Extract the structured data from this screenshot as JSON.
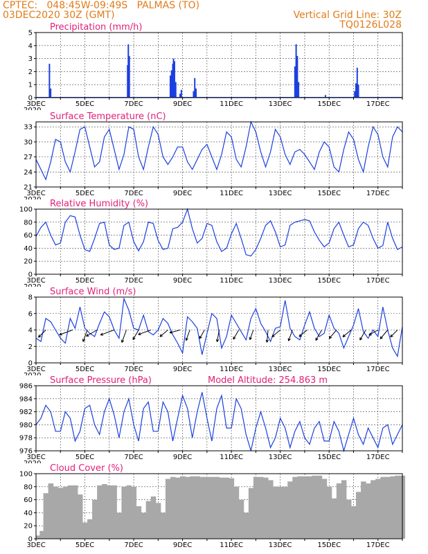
{
  "header": {
    "line1_left": "CPTEC:   048:45W-09:49S   PALMAS (TO)",
    "line2_left": "03DEC2020 30Z (GMT)",
    "line1_right": "Vertical Grid Line: 30Z",
    "line2_right": "TQ0126L028"
  },
  "colors": {
    "header": "#e07c1a",
    "title": "#e0207a",
    "line": "#1a3fe0",
    "bar": "#1a3fe0",
    "cloud": "#a8a8a8"
  },
  "x_axis": {
    "tick_labels": [
      "3DEC",
      "5DEC",
      "7DEC",
      "9DEC",
      "11DEC",
      "13DEC",
      "15DEC",
      "17DEC"
    ],
    "start_day": 3,
    "end_day": 18,
    "truncated_label": "2020"
  },
  "chart_data": [
    {
      "type": "bar",
      "title": "Precipitation (mm/h)",
      "ylim": [
        0,
        5
      ],
      "yticks": [
        0,
        1,
        2,
        3,
        4,
        5
      ],
      "x_unit": "day of December 2020",
      "points": [
        [
          3.55,
          2.6
        ],
        [
          3.6,
          0.7
        ],
        [
          6.75,
          2.5
        ],
        [
          6.78,
          4.1
        ],
        [
          6.82,
          3.2
        ],
        [
          8.5,
          1.7
        ],
        [
          8.55,
          2.1
        ],
        [
          8.6,
          2.6
        ],
        [
          8.63,
          3.0
        ],
        [
          8.67,
          2.8
        ],
        [
          8.72,
          1.2
        ],
        [
          8.9,
          0.3
        ],
        [
          8.95,
          0.6
        ],
        [
          9.45,
          0.5
        ],
        [
          9.5,
          1.5
        ],
        [
          9.55,
          0.7
        ],
        [
          13.6,
          2.4
        ],
        [
          13.65,
          4.1
        ],
        [
          13.7,
          3.2
        ],
        [
          13.75,
          1.2
        ],
        [
          14.85,
          0.2
        ],
        [
          16.05,
          0.5
        ],
        [
          16.1,
          1.1
        ],
        [
          16.15,
          2.3
        ],
        [
          16.2,
          1.0
        ]
      ]
    },
    {
      "type": "line",
      "title": "Surface Temperature (nC)",
      "ylim": [
        21,
        34
      ],
      "yticks": [
        21,
        24,
        27,
        30,
        33
      ],
      "x": [
        3.0,
        3.2,
        3.4,
        3.6,
        3.8,
        4.0,
        4.2,
        4.4,
        4.6,
        4.8,
        5.0,
        5.2,
        5.4,
        5.6,
        5.8,
        6.0,
        6.2,
        6.4,
        6.6,
        6.8,
        7.0,
        7.2,
        7.4,
        7.6,
        7.8,
        8.0,
        8.2,
        8.4,
        8.6,
        8.8,
        9.0,
        9.2,
        9.4,
        9.6,
        9.8,
        10.0,
        10.2,
        10.4,
        10.6,
        10.8,
        11.0,
        11.2,
        11.4,
        11.6,
        11.8,
        12.0,
        12.2,
        12.4,
        12.6,
        12.8,
        13.0,
        13.2,
        13.4,
        13.6,
        13.8,
        14.0,
        14.2,
        14.4,
        14.6,
        14.8,
        15.0,
        15.2,
        15.4,
        15.6,
        15.8,
        16.0,
        16.2,
        16.4,
        16.6,
        16.8,
        17.0,
        17.2,
        17.4,
        17.6,
        17.8,
        18.0
      ],
      "y": [
        26.5,
        24.5,
        22.5,
        26.0,
        30.5,
        30.0,
        26.0,
        24.0,
        28.0,
        32.5,
        33.0,
        29.0,
        25.0,
        26.0,
        31.0,
        32.5,
        28.5,
        24.5,
        27.5,
        33.0,
        32.5,
        27.0,
        24.5,
        29.0,
        33.0,
        31.5,
        27.0,
        25.5,
        27.0,
        29.0,
        29.0,
        26.0,
        24.5,
        26.5,
        28.5,
        29.5,
        27.0,
        24.5,
        27.5,
        32.0,
        31.0,
        26.5,
        25.0,
        29.0,
        34.0,
        32.0,
        28.0,
        25.0,
        28.0,
        32.5,
        31.0,
        27.5,
        25.5,
        28.0,
        28.5,
        27.5,
        26.0,
        24.5,
        28.0,
        30.0,
        29.0,
        25.0,
        24.0,
        28.5,
        32.0,
        30.5,
        26.5,
        24.0,
        29.0,
        33.0,
        31.5,
        27.0,
        25.0,
        31.0,
        33.0,
        32.0
      ]
    },
    {
      "type": "line",
      "title": "Relative Humidity (%)",
      "ylim": [
        0,
        100
      ],
      "yticks": [
        0,
        20,
        40,
        60,
        80,
        100
      ],
      "x": [
        3.0,
        3.2,
        3.4,
        3.6,
        3.8,
        4.0,
        4.2,
        4.4,
        4.6,
        4.8,
        5.0,
        5.2,
        5.4,
        5.6,
        5.8,
        6.0,
        6.2,
        6.4,
        6.6,
        6.8,
        7.0,
        7.2,
        7.4,
        7.6,
        7.8,
        8.0,
        8.2,
        8.4,
        8.6,
        8.8,
        9.0,
        9.2,
        9.4,
        9.6,
        9.8,
        10.0,
        10.2,
        10.4,
        10.6,
        10.8,
        11.0,
        11.2,
        11.4,
        11.6,
        11.8,
        12.0,
        12.2,
        12.4,
        12.6,
        12.8,
        13.0,
        13.2,
        13.4,
        13.6,
        13.8,
        14.0,
        14.2,
        14.4,
        14.6,
        14.8,
        15.0,
        15.2,
        15.4,
        15.6,
        15.8,
        16.0,
        16.2,
        16.4,
        16.6,
        16.8,
        17.0,
        17.2,
        17.4,
        17.6,
        17.8,
        18.0
      ],
      "y": [
        58,
        72,
        80,
        60,
        45,
        48,
        80,
        90,
        88,
        60,
        38,
        35,
        55,
        78,
        80,
        45,
        38,
        40,
        75,
        80,
        50,
        36,
        50,
        80,
        78,
        52,
        38,
        40,
        70,
        72,
        80,
        100,
        70,
        48,
        55,
        78,
        75,
        50,
        35,
        40,
        62,
        78,
        55,
        30,
        28,
        38,
        55,
        75,
        82,
        65,
        42,
        45,
        75,
        80,
        82,
        84,
        82,
        65,
        52,
        42,
        48,
        70,
        80,
        60,
        42,
        45,
        70,
        80,
        75,
        55,
        40,
        44,
        80,
        55,
        38,
        42
      ]
    },
    {
      "type": "line",
      "title": "Surface Wind (m/s)",
      "ylim": [
        0,
        8
      ],
      "yticks": [
        0,
        2,
        4,
        6,
        8
      ],
      "x": [
        3.0,
        3.2,
        3.4,
        3.6,
        3.8,
        4.0,
        4.2,
        4.4,
        4.6,
        4.8,
        5.0,
        5.2,
        5.4,
        5.6,
        5.8,
        6.0,
        6.2,
        6.4,
        6.6,
        6.8,
        7.0,
        7.2,
        7.4,
        7.6,
        7.8,
        8.0,
        8.2,
        8.4,
        8.6,
        8.8,
        9.0,
        9.2,
        9.4,
        9.6,
        9.8,
        10.0,
        10.2,
        10.4,
        10.6,
        10.8,
        11.0,
        11.2,
        11.4,
        11.6,
        11.8,
        12.0,
        12.2,
        12.4,
        12.6,
        12.8,
        13.0,
        13.2,
        13.4,
        13.6,
        13.8,
        14.0,
        14.2,
        14.4,
        14.6,
        14.8,
        15.0,
        15.2,
        15.4,
        15.6,
        15.8,
        16.0,
        16.2,
        16.4,
        16.6,
        16.8,
        17.0,
        17.2,
        17.4,
        17.6,
        17.8,
        18.0
      ],
      "y": [
        3.0,
        2.6,
        5.4,
        5.0,
        4.0,
        3.0,
        2.4,
        5.4,
        4.2,
        6.8,
        4.2,
        3.6,
        3.2,
        4.8,
        6.2,
        5.6,
        4.0,
        3.0,
        7.8,
        6.4,
        4.2,
        4.0,
        5.8,
        3.8,
        3.4,
        4.0,
        5.4,
        4.8,
        3.4,
        2.4,
        1.2,
        5.6,
        5.0,
        4.2,
        1.0,
        3.6,
        6.0,
        5.4,
        1.8,
        3.2,
        5.8,
        4.8,
        3.8,
        2.8,
        5.4,
        6.6,
        4.8,
        3.8,
        2.6,
        4.2,
        4.4,
        7.6,
        4.2,
        3.2,
        2.8,
        4.6,
        6.2,
        4.2,
        3.2,
        3.6,
        5.8,
        4.2,
        3.6,
        1.8,
        3.2,
        4.6,
        6.6,
        3.8,
        3.0,
        4.0,
        3.2,
        6.8,
        4.0,
        1.8,
        0.8,
        4.4
      ],
      "vectors": [
        [
          3.4,
          225,
          2.5
        ],
        [
          4.5,
          250,
          3.4
        ],
        [
          5.1,
          200,
          3.0
        ],
        [
          5.5,
          240,
          3.0
        ],
        [
          6.2,
          250,
          3.5
        ],
        [
          6.7,
          200,
          3.2
        ],
        [
          7.2,
          210,
          2.7
        ],
        [
          7.7,
          250,
          3.2
        ],
        [
          8.4,
          230,
          2.5
        ],
        [
          8.9,
          255,
          2.6
        ],
        [
          9.3,
          200,
          2.7
        ],
        [
          9.9,
          210,
          2.4
        ],
        [
          10.5,
          190,
          2.9
        ],
        [
          11.3,
          210,
          2.6
        ],
        [
          11.9,
          200,
          2.5
        ],
        [
          12.5,
          185,
          3.0
        ],
        [
          13.0,
          230,
          2.6
        ],
        [
          13.5,
          200,
          2.8
        ],
        [
          14.1,
          230,
          2.5
        ],
        [
          14.7,
          210,
          2.9
        ],
        [
          15.3,
          220,
          2.7
        ],
        [
          15.9,
          230,
          2.6
        ],
        [
          16.5,
          210,
          2.8
        ],
        [
          17.0,
          240,
          2.5
        ],
        [
          17.4,
          220,
          2.8
        ],
        [
          17.8,
          225,
          2.4
        ]
      ]
    },
    {
      "type": "line",
      "title": "Surface Pressure (hPa)",
      "ylim": [
        976,
        986
      ],
      "yticks": [
        976,
        978,
        980,
        982,
        984,
        986
      ],
      "x": [
        3.0,
        3.2,
        3.4,
        3.6,
        3.8,
        4.0,
        4.2,
        4.4,
        4.6,
        4.8,
        5.0,
        5.2,
        5.4,
        5.6,
        5.8,
        6.0,
        6.2,
        6.4,
        6.6,
        6.8,
        7.0,
        7.2,
        7.4,
        7.6,
        7.8,
        8.0,
        8.2,
        8.4,
        8.6,
        8.8,
        9.0,
        9.2,
        9.4,
        9.6,
        9.8,
        10.0,
        10.2,
        10.4,
        10.6,
        10.8,
        11.0,
        11.2,
        11.4,
        11.6,
        11.8,
        12.0,
        12.2,
        12.4,
        12.6,
        12.8,
        13.0,
        13.2,
        13.4,
        13.6,
        13.8,
        14.0,
        14.2,
        14.4,
        14.6,
        14.8,
        15.0,
        15.2,
        15.4,
        15.6,
        15.8,
        16.0,
        16.2,
        16.4,
        16.6,
        16.8,
        17.0,
        17.2,
        17.4,
        17.6,
        17.8,
        18.0
      ],
      "y": [
        980.0,
        981.0,
        983.0,
        982.0,
        979.0,
        979.0,
        982.0,
        981.0,
        977.5,
        979.0,
        982.5,
        983.0,
        980.0,
        978.5,
        982.0,
        984.0,
        981.5,
        978.0,
        982.0,
        984.0,
        980.0,
        977.5,
        982.5,
        983.5,
        979.0,
        979.0,
        983.5,
        982.0,
        977.5,
        981.0,
        984.5,
        982.5,
        978.0,
        982.0,
        985.0,
        981.0,
        977.5,
        982.5,
        984.5,
        979.5,
        979.5,
        984.0,
        982.5,
        978.5,
        976.0,
        979.5,
        982.0,
        979.5,
        976.5,
        978.0,
        981.0,
        979.5,
        976.5,
        979.0,
        980.5,
        978.0,
        977.0,
        979.5,
        980.5,
        977.5,
        977.5,
        980.5,
        979.0,
        976.0,
        978.5,
        981.0,
        978.5,
        977.0,
        979.5,
        978.0,
        976.5,
        979.5,
        980.0,
        977.0,
        978.5,
        980.0
      ]
    },
    {
      "type": "bar",
      "title": "Cloud Cover (%)",
      "ylim": [
        0,
        100
      ],
      "yticks": [
        0,
        20,
        40,
        60,
        80,
        100
      ],
      "x_unit": "day of December 2020",
      "points": [
        [
          3.0,
          5
        ],
        [
          3.15,
          12
        ],
        [
          3.3,
          70
        ],
        [
          3.5,
          85
        ],
        [
          3.7,
          80
        ],
        [
          3.9,
          78
        ],
        [
          4.1,
          80
        ],
        [
          4.3,
          82
        ],
        [
          4.5,
          82
        ],
        [
          4.7,
          68
        ],
        [
          4.9,
          25
        ],
        [
          5.1,
          30
        ],
        [
          5.3,
          60
        ],
        [
          5.5,
          82
        ],
        [
          5.7,
          84
        ],
        [
          5.9,
          82
        ],
        [
          6.1,
          82
        ],
        [
          6.3,
          40
        ],
        [
          6.5,
          80
        ],
        [
          6.7,
          82
        ],
        [
          6.9,
          80
        ],
        [
          7.1,
          50
        ],
        [
          7.3,
          40
        ],
        [
          7.5,
          58
        ],
        [
          7.7,
          65
        ],
        [
          7.9,
          55
        ],
        [
          8.1,
          40
        ],
        [
          8.3,
          92
        ],
        [
          8.5,
          95
        ],
        [
          8.7,
          94
        ],
        [
          8.9,
          96
        ],
        [
          9.1,
          95
        ],
        [
          9.3,
          96
        ],
        [
          9.5,
          96
        ],
        [
          9.7,
          95
        ],
        [
          9.9,
          95
        ],
        [
          10.1,
          95
        ],
        [
          10.3,
          95
        ],
        [
          10.5,
          94
        ],
        [
          10.7,
          94
        ],
        [
          10.9,
          93
        ],
        [
          11.1,
          80
        ],
        [
          11.3,
          60
        ],
        [
          11.5,
          40
        ],
        [
          11.7,
          78
        ],
        [
          11.9,
          95
        ],
        [
          12.1,
          95
        ],
        [
          12.3,
          94
        ],
        [
          12.5,
          90
        ],
        [
          12.7,
          80
        ],
        [
          12.9,
          80
        ],
        [
          13.1,
          80
        ],
        [
          13.3,
          88
        ],
        [
          13.5,
          95
        ],
        [
          13.7,
          96
        ],
        [
          13.9,
          96
        ],
        [
          14.1,
          96
        ],
        [
          14.3,
          97
        ],
        [
          14.5,
          97
        ],
        [
          14.7,
          92
        ],
        [
          14.9,
          80
        ],
        [
          15.1,
          62
        ],
        [
          15.3,
          85
        ],
        [
          15.5,
          90
        ],
        [
          15.7,
          60
        ],
        [
          15.9,
          50
        ],
        [
          16.1,
          72
        ],
        [
          16.3,
          88
        ],
        [
          16.5,
          85
        ],
        [
          16.7,
          90
        ],
        [
          16.9,
          92
        ],
        [
          17.1,
          95
        ],
        [
          17.3,
          95
        ],
        [
          17.5,
          96
        ],
        [
          17.7,
          97
        ],
        [
          17.9,
          97
        ]
      ]
    }
  ],
  "extra_text": {
    "model_altitude": "Model Altitude: 254.863  m"
  }
}
